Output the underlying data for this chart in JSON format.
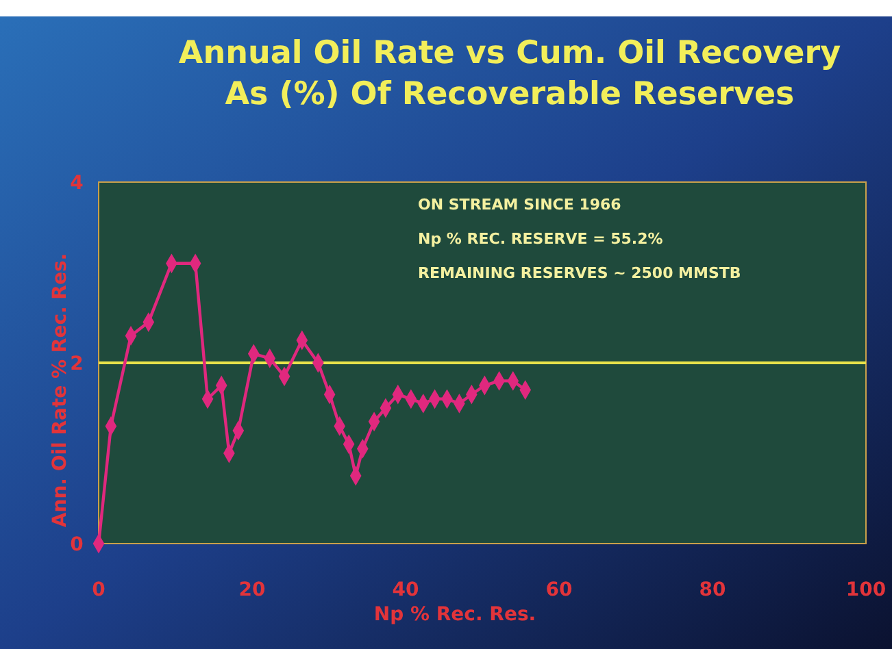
{
  "chart_data": {
    "type": "line",
    "title": "Annual Oil Rate vs Cum. Oil Recovery\nAs (%) Of Recoverable Reserves",
    "xlabel": "Np % Rec. Res.",
    "ylabel": "Ann. Oil Rate % Rec. Res.",
    "annotations": [
      "ON STREAM SINCE 1966",
      "Np % REC. RESERVE = 55.2%",
      "REMAINING RESERVES ~ 2500 MMSTB"
    ],
    "x": [
      0,
      1.6,
      4.2,
      6.5,
      9.5,
      12.6,
      14.2,
      16.0,
      17.0,
      18.2,
      20.2,
      22.3,
      24.2,
      26.5,
      28.6,
      30.1,
      31.4,
      32.6,
      33.5,
      34.4,
      35.9,
      37.4,
      39.0,
      40.7,
      42.3,
      43.8,
      45.4,
      47.0,
      48.6,
      50.3,
      52.2,
      54.0,
      55.6
    ],
    "series": [
      {
        "color": "#e0287e",
        "values": [
          0,
          1.3,
          2.3,
          2.45,
          3.1,
          3.1,
          1.6,
          1.75,
          1.0,
          1.25,
          2.1,
          2.05,
          1.85,
          2.25,
          2.0,
          1.65,
          1.3,
          1.1,
          0.75,
          1.05,
          1.35,
          1.5,
          1.65,
          1.6,
          1.55,
          1.6,
          1.6,
          1.55,
          1.65,
          1.75,
          1.8,
          1.8,
          1.7
        ]
      }
    ],
    "xlim": [
      0,
      100
    ],
    "xticks": [
      0,
      20,
      40,
      60,
      80,
      100
    ],
    "ylim": [
      0,
      4
    ],
    "yticks": [
      0,
      2,
      4
    ],
    "ref_lines": [
      {
        "axis": "y",
        "value": 2,
        "color": "#e8e24a"
      }
    ],
    "marker": "diamond",
    "line_style": "solid"
  }
}
